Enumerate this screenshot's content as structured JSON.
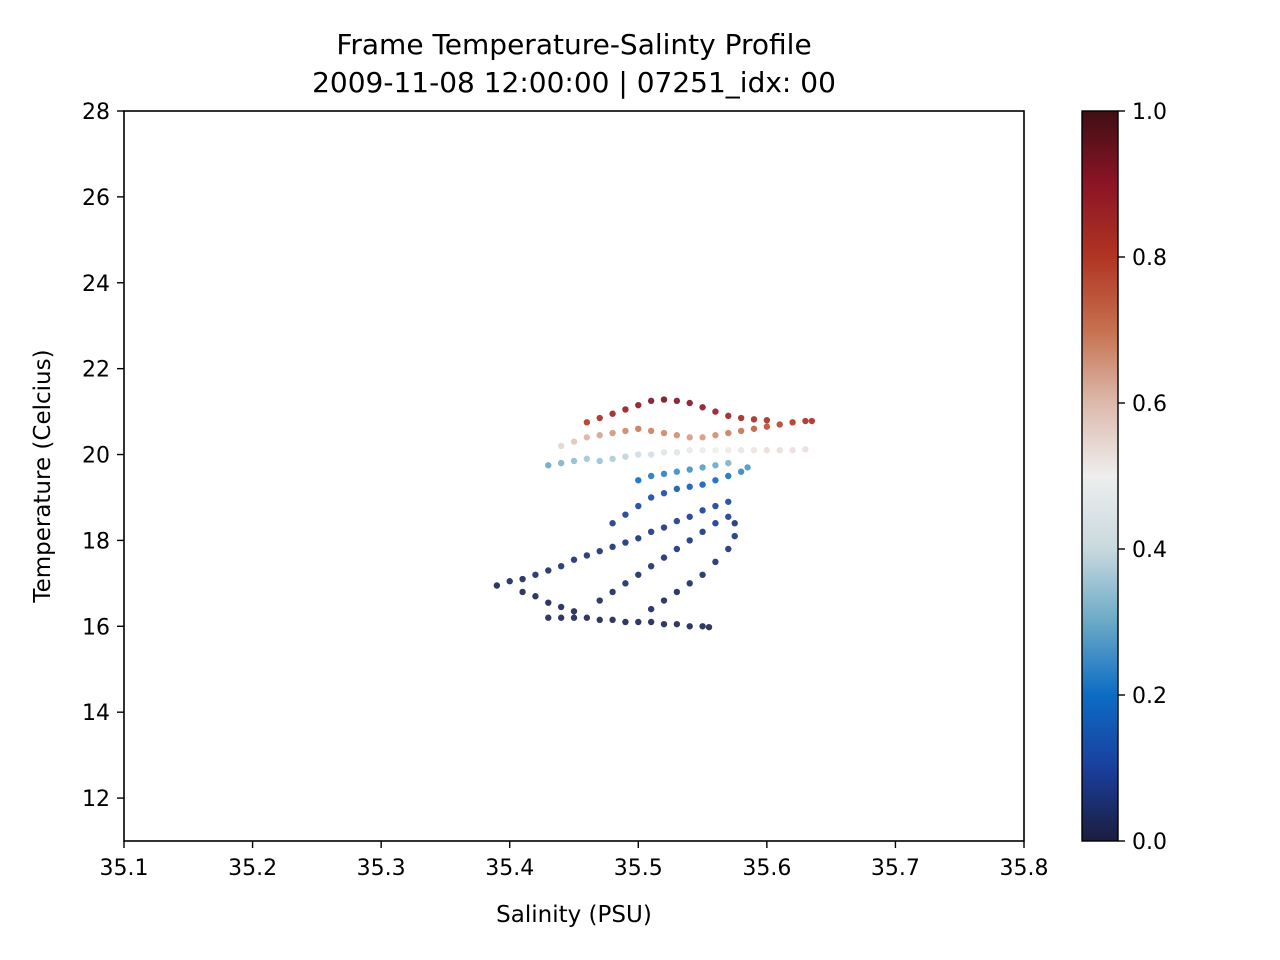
{
  "chart_data": {
    "type": "scatter",
    "title": "Frame Temperature-Salinty Profile",
    "subtitle": "2009-11-08 12:00:00 | 07251_idx: 00",
    "xlabel": "Salinity (PSU)",
    "ylabel": "Temperature (Celcius)",
    "xlim": [
      35.1,
      35.8
    ],
    "ylim": [
      11,
      28
    ],
    "xticks": [
      "35.1",
      "35.2",
      "35.3",
      "35.4",
      "35.5",
      "35.6",
      "35.7",
      "35.8"
    ],
    "yticks": [
      "12",
      "14",
      "16",
      "18",
      "20",
      "22",
      "24",
      "26",
      "28"
    ],
    "grid": false,
    "colorbar": {
      "range": [
        0,
        1
      ],
      "ticks": [
        "0.0",
        "0.2",
        "0.4",
        "0.6",
        "0.8",
        "1.0"
      ],
      "colormap": "diverging navy-blue-white-red-darkred",
      "colors": [
        "#1b1d3e",
        "#1a3f9e",
        "#0c6cc4",
        "#6aa9c6",
        "#c8d9de",
        "#eeeeee",
        "#dcb9ab",
        "#c6704f",
        "#b03523",
        "#8c1425",
        "#3f0f14"
      ]
    },
    "series": [
      {
        "points": [
          [
            35.39,
            16.95,
            0.02
          ],
          [
            35.4,
            17.05,
            0.03
          ],
          [
            35.41,
            17.1,
            0.03
          ],
          [
            35.42,
            17.2,
            0.04
          ],
          [
            35.43,
            17.3,
            0.04
          ],
          [
            35.44,
            17.4,
            0.05
          ],
          [
            35.45,
            17.55,
            0.05
          ],
          [
            35.46,
            17.65,
            0.05
          ],
          [
            35.47,
            17.75,
            0.05
          ],
          [
            35.48,
            17.85,
            0.06
          ],
          [
            35.49,
            17.95,
            0.06
          ],
          [
            35.5,
            18.05,
            0.06
          ],
          [
            35.51,
            18.2,
            0.07
          ],
          [
            35.52,
            18.3,
            0.07
          ],
          [
            35.53,
            18.45,
            0.08
          ],
          [
            35.54,
            18.55,
            0.08
          ],
          [
            35.55,
            18.7,
            0.09
          ],
          [
            35.56,
            18.8,
            0.1
          ],
          [
            35.57,
            18.9,
            0.11
          ],
          [
            35.575,
            18.4,
            0.06
          ],
          [
            35.41,
            16.8,
            0.02
          ],
          [
            35.42,
            16.7,
            0.02
          ],
          [
            35.43,
            16.55,
            0.02
          ],
          [
            35.44,
            16.45,
            0.02
          ],
          [
            35.45,
            16.35,
            0.02
          ],
          [
            35.43,
            16.2,
            0.02
          ],
          [
            35.44,
            16.2,
            0.02
          ],
          [
            35.45,
            16.2,
            0.02
          ],
          [
            35.46,
            16.2,
            0.02
          ],
          [
            35.47,
            16.15,
            0.02
          ],
          [
            35.48,
            16.15,
            0.02
          ],
          [
            35.49,
            16.1,
            0.02
          ],
          [
            35.5,
            16.1,
            0.02
          ],
          [
            35.51,
            16.1,
            0.02
          ],
          [
            35.52,
            16.05,
            0.02
          ],
          [
            35.53,
            16.05,
            0.02
          ],
          [
            35.54,
            16.0,
            0.02
          ],
          [
            35.55,
            16.0,
            0.02
          ],
          [
            35.555,
            15.98,
            0.02
          ],
          [
            35.47,
            16.6,
            0.03
          ],
          [
            35.48,
            16.8,
            0.03
          ],
          [
            35.49,
            17.0,
            0.04
          ],
          [
            35.5,
            17.2,
            0.04
          ],
          [
            35.51,
            17.4,
            0.05
          ],
          [
            35.52,
            17.6,
            0.05
          ],
          [
            35.53,
            17.8,
            0.06
          ],
          [
            35.54,
            18.0,
            0.06
          ],
          [
            35.55,
            18.2,
            0.07
          ],
          [
            35.56,
            18.4,
            0.08
          ],
          [
            35.57,
            18.55,
            0.09
          ],
          [
            35.51,
            16.4,
            0.03
          ],
          [
            35.52,
            16.6,
            0.03
          ],
          [
            35.53,
            16.8,
            0.03
          ],
          [
            35.54,
            17.0,
            0.04
          ],
          [
            35.55,
            17.2,
            0.04
          ],
          [
            35.56,
            17.5,
            0.05
          ],
          [
            35.57,
            17.8,
            0.06
          ],
          [
            35.575,
            18.1,
            0.07
          ],
          [
            35.48,
            18.4,
            0.08
          ],
          [
            35.49,
            18.6,
            0.09
          ],
          [
            35.5,
            18.8,
            0.1
          ],
          [
            35.51,
            19.0,
            0.12
          ],
          [
            35.52,
            19.1,
            0.13
          ],
          [
            35.53,
            19.2,
            0.15
          ],
          [
            35.54,
            19.25,
            0.16
          ],
          [
            35.55,
            19.3,
            0.17
          ],
          [
            35.56,
            19.4,
            0.19
          ],
          [
            35.57,
            19.5,
            0.21
          ],
          [
            35.58,
            19.6,
            0.24
          ],
          [
            35.585,
            19.7,
            0.27
          ],
          [
            35.5,
            19.4,
            0.2
          ],
          [
            35.51,
            19.5,
            0.22
          ],
          [
            35.52,
            19.55,
            0.23
          ],
          [
            35.53,
            19.6,
            0.25
          ],
          [
            35.54,
            19.65,
            0.26
          ],
          [
            35.55,
            19.7,
            0.28
          ],
          [
            35.56,
            19.75,
            0.3
          ],
          [
            35.57,
            19.8,
            0.32
          ],
          [
            35.43,
            19.75,
            0.3
          ],
          [
            35.44,
            19.8,
            0.32
          ],
          [
            35.45,
            19.85,
            0.34
          ],
          [
            35.46,
            19.9,
            0.36
          ],
          [
            35.47,
            19.85,
            0.35
          ],
          [
            35.48,
            19.9,
            0.37
          ],
          [
            35.49,
            19.95,
            0.39
          ],
          [
            35.5,
            20.0,
            0.42
          ],
          [
            35.51,
            20.0,
            0.43
          ],
          [
            35.52,
            20.05,
            0.45
          ],
          [
            35.53,
            20.05,
            0.46
          ],
          [
            35.54,
            20.1,
            0.48
          ],
          [
            35.55,
            20.1,
            0.49
          ],
          [
            35.56,
            20.1,
            0.5
          ],
          [
            35.57,
            20.1,
            0.51
          ],
          [
            35.58,
            20.1,
            0.52
          ],
          [
            35.59,
            20.1,
            0.52
          ],
          [
            35.6,
            20.1,
            0.53
          ],
          [
            35.61,
            20.1,
            0.53
          ],
          [
            35.62,
            20.1,
            0.53
          ],
          [
            35.63,
            20.12,
            0.53
          ],
          [
            35.44,
            20.2,
            0.55
          ],
          [
            35.45,
            20.3,
            0.58
          ],
          [
            35.46,
            20.4,
            0.61
          ],
          [
            35.47,
            20.45,
            0.63
          ],
          [
            35.48,
            20.5,
            0.65
          ],
          [
            35.49,
            20.55,
            0.67
          ],
          [
            35.5,
            20.6,
            0.69
          ],
          [
            35.51,
            20.55,
            0.68
          ],
          [
            35.52,
            20.5,
            0.67
          ],
          [
            35.53,
            20.45,
            0.66
          ],
          [
            35.54,
            20.4,
            0.64
          ],
          [
            35.55,
            20.4,
            0.64
          ],
          [
            35.56,
            20.45,
            0.66
          ],
          [
            35.57,
            20.5,
            0.68
          ],
          [
            35.58,
            20.55,
            0.7
          ],
          [
            35.59,
            20.6,
            0.73
          ],
          [
            35.6,
            20.65,
            0.76
          ],
          [
            35.61,
            20.7,
            0.78
          ],
          [
            35.62,
            20.75,
            0.8
          ],
          [
            35.63,
            20.78,
            0.82
          ],
          [
            35.635,
            20.78,
            0.82
          ],
          [
            35.46,
            20.75,
            0.8
          ],
          [
            35.47,
            20.85,
            0.83
          ],
          [
            35.48,
            20.95,
            0.86
          ],
          [
            35.49,
            21.05,
            0.88
          ],
          [
            35.5,
            21.15,
            0.9
          ],
          [
            35.51,
            21.25,
            0.92
          ],
          [
            35.52,
            21.28,
            0.93
          ],
          [
            35.53,
            21.25,
            0.92
          ],
          [
            35.54,
            21.2,
            0.91
          ],
          [
            35.55,
            21.1,
            0.9
          ],
          [
            35.56,
            21.0,
            0.88
          ],
          [
            35.57,
            20.9,
            0.86
          ],
          [
            35.58,
            20.85,
            0.84
          ],
          [
            35.59,
            20.82,
            0.83
          ],
          [
            35.6,
            20.8,
            0.82
          ]
        ]
      }
    ]
  }
}
